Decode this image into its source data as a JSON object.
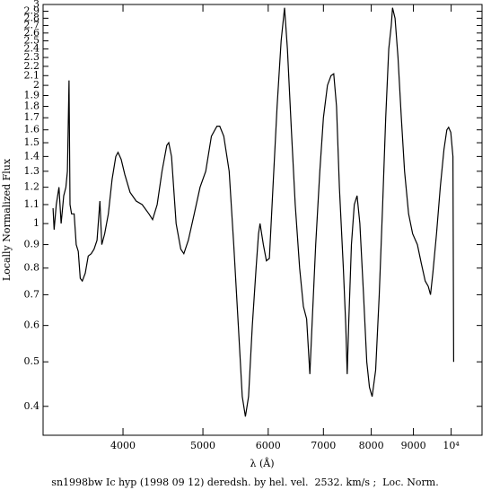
{
  "chart_data": {
    "type": "line",
    "title": "sn1998bw Ic hyp (1998 09 12) deredsh. by hel. vel.  2532. km/s ;  Loc. Norm.",
    "x_label": "λ (Å)",
    "y_label": "Locally Normalized Flux",
    "x_scale": "log",
    "y_scale": "log",
    "xlim": [
      3200,
      10900
    ],
    "ylim": [
      0.346,
      3
    ],
    "xticks": [
      4000,
      5000,
      6000,
      7000,
      8000,
      9000,
      {
        "value": 10000,
        "label": "10⁴"
      }
    ],
    "yticks": [
      0.4,
      0.5,
      0.6,
      0.7,
      0.8,
      0.9,
      1,
      1.1,
      1.2,
      1.3,
      1.4,
      1.5,
      1.6,
      1.7,
      1.8,
      1.9,
      2,
      2.1,
      2.2,
      2.3,
      2.4,
      2.5,
      2.6,
      2.7,
      2.8,
      2.9,
      3
    ],
    "color": "#000000",
    "x": [
      3290,
      3300,
      3320,
      3345,
      3365,
      3390,
      3410,
      3425,
      3440,
      3450,
      3465,
      3490,
      3510,
      3530,
      3550,
      3570,
      3600,
      3630,
      3660,
      3690,
      3720,
      3750,
      3770,
      3800,
      3840,
      3880,
      3920,
      3945,
      3980,
      4020,
      4080,
      4150,
      4220,
      4300,
      4345,
      4400,
      4460,
      4520,
      4545,
      4580,
      4640,
      4700,
      4740,
      4800,
      4880,
      4960,
      5040,
      5120,
      5200,
      5240,
      5300,
      5380,
      5450,
      5520,
      5580,
      5630,
      5680,
      5740,
      5800,
      5840,
      5865,
      5920,
      5970,
      6020,
      6080,
      6150,
      6220,
      6280,
      6330,
      6400,
      6470,
      6550,
      6620,
      6680,
      6740,
      6780,
      6850,
      6930,
      7000,
      7080,
      7150,
      7205,
      7260,
      7320,
      7400,
      7450,
      7480,
      7510,
      7570,
      7630,
      7690,
      7750,
      7830,
      7900,
      7960,
      8020,
      8100,
      8180,
      8260,
      8330,
      8400,
      8460,
      8490,
      8550,
      8620,
      8700,
      8780,
      8880,
      8980,
      9100,
      9200,
      9300,
      9380,
      9440,
      9500,
      9600,
      9700,
      9800,
      9880,
      9930,
      9990,
      10050,
      10070
    ],
    "y": [
      1.08,
      0.97,
      1.1,
      1.2,
      1.0,
      1.15,
      1.2,
      1.3,
      2.05,
      1.1,
      1.05,
      1.05,
      0.9,
      0.87,
      0.76,
      0.75,
      0.78,
      0.85,
      0.86,
      0.88,
      0.92,
      1.12,
      0.9,
      0.95,
      1.05,
      1.25,
      1.4,
      1.43,
      1.38,
      1.28,
      1.17,
      1.12,
      1.1,
      1.05,
      1.02,
      1.1,
      1.3,
      1.48,
      1.5,
      1.4,
      1.0,
      0.88,
      0.86,
      0.92,
      1.05,
      1.2,
      1.3,
      1.55,
      1.63,
      1.63,
      1.55,
      1.3,
      0.9,
      0.6,
      0.42,
      0.38,
      0.42,
      0.6,
      0.8,
      0.95,
      1.0,
      0.9,
      0.83,
      0.84,
      1.2,
      1.8,
      2.5,
      2.95,
      2.4,
      1.6,
      1.1,
      0.8,
      0.66,
      0.62,
      0.47,
      0.6,
      0.9,
      1.3,
      1.7,
      2.0,
      2.1,
      2.12,
      1.8,
      1.2,
      0.8,
      0.6,
      0.47,
      0.6,
      0.9,
      1.1,
      1.15,
      1.0,
      0.7,
      0.5,
      0.44,
      0.42,
      0.48,
      0.7,
      1.1,
      1.7,
      2.4,
      2.7,
      2.95,
      2.8,
      2.3,
      1.7,
      1.3,
      1.05,
      0.95,
      0.9,
      0.82,
      0.75,
      0.73,
      0.7,
      0.78,
      0.95,
      1.2,
      1.45,
      1.6,
      1.62,
      1.58,
      1.4,
      0.5
    ]
  }
}
